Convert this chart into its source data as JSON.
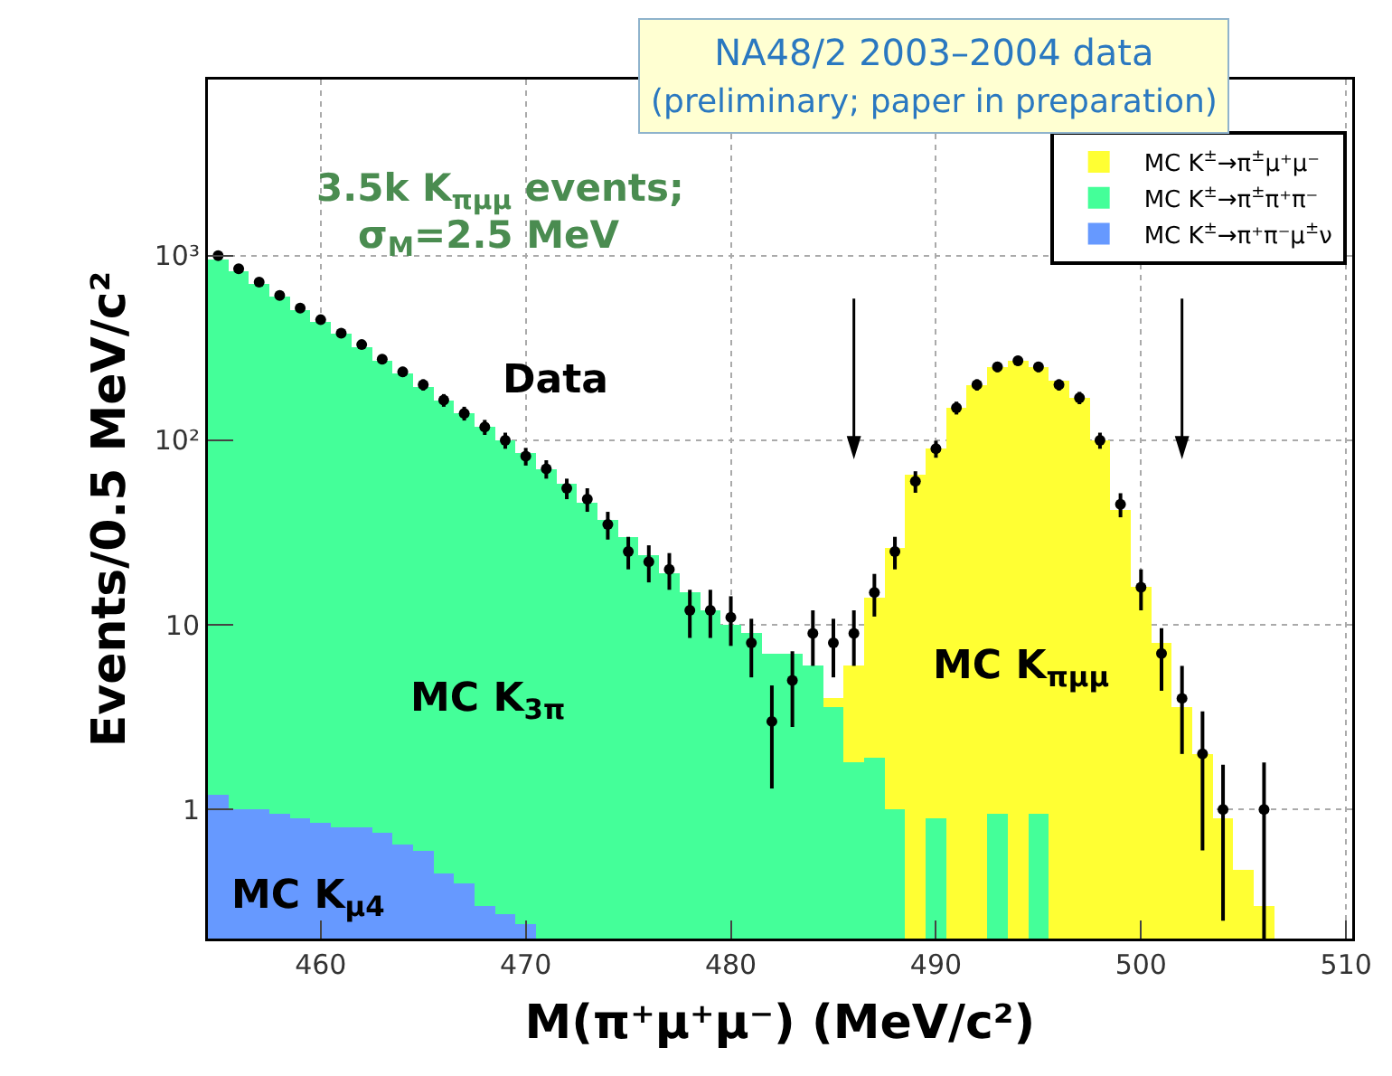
{
  "chart_data": {
    "type": "histogram",
    "title": "NA48/2 2003–2004 data",
    "subtitle": "(preliminary; paper in preparation)",
    "xlabel": "M(π⁺μ⁺μ⁻) (MeV/c²)",
    "ylabel": "Events/0.5 MeV/c²",
    "bins": [
      454.5,
      455.5,
      456.5,
      457.5,
      458.5,
      459.5,
      460.5,
      461.5,
      462.5,
      463.5,
      464.5,
      465.5,
      466.5,
      467.5,
      468.5,
      469.5,
      470.5,
      471.5,
      472.5,
      473.5,
      474.5,
      475.5,
      476.5,
      477.5,
      478.5,
      479.5,
      480.5,
      481.5,
      482.5,
      483.5,
      484.5,
      485.5,
      486.5,
      487.5,
      488.5,
      489.5,
      490.5,
      491.5,
      492.5,
      493.5,
      494.5,
      495.5,
      496.5,
      497.5,
      498.5,
      499.5,
      500.5,
      501.5,
      502.5,
      503.5,
      504.5,
      505.5,
      506.5,
      507.5,
      508.5,
      509.5,
      510.5
    ],
    "series": [
      {
        "name": "MC K$^{±}$→π$^{±}$μ⁺μ⁻",
        "color": "#ffff33",
        "values": [
          null,
          null,
          null,
          null,
          null,
          null,
          null,
          null,
          null,
          null,
          null,
          null,
          null,
          null,
          null,
          null,
          null,
          null,
          null,
          null,
          null,
          null,
          null,
          null,
          null,
          null,
          null,
          null,
          null,
          null,
          4,
          6,
          14,
          26,
          65,
          90,
          150,
          200,
          250,
          270,
          250,
          210,
          170,
          100,
          42,
          16,
          8,
          3.6,
          2,
          0.9,
          0.47,
          0.3,
          null,
          null,
          null,
          null
        ]
      },
      {
        "name": "MC K$^{±}$→π$^{±}$π⁺π⁻",
        "color": "#44ff99",
        "values": [
          950,
          820,
          700,
          600,
          510,
          440,
          380,
          320,
          270,
          230,
          195,
          165,
          140,
          118,
          100,
          85,
          70,
          58,
          46,
          37,
          30,
          24,
          19,
          15,
          12,
          10,
          9,
          7,
          7,
          6,
          3.6,
          1.8,
          1.9,
          1,
          null,
          0.9,
          null,
          null,
          0.95,
          null,
          0.95,
          null,
          null,
          null,
          null,
          null,
          null,
          null,
          null,
          null,
          null,
          null,
          null,
          null,
          null,
          null
        ]
      },
      {
        "name": "MC K$^{±}$→π⁺π⁻μ$^{±}$ν",
        "color": "#6699ff",
        "values": [
          1.2,
          1.0,
          1.0,
          0.95,
          0.9,
          0.85,
          0.8,
          0.8,
          0.75,
          0.65,
          0.6,
          0.45,
          0.4,
          0.3,
          0.27,
          0.24,
          null,
          null,
          null,
          null,
          null,
          null,
          null,
          null,
          null,
          null,
          null,
          null,
          null,
          null,
          null,
          null,
          null,
          null,
          null,
          null,
          null,
          null,
          null,
          null,
          null,
          null,
          null,
          null,
          null,
          null,
          null,
          null,
          null,
          null,
          null,
          null,
          null,
          null,
          null,
          null
        ]
      },
      {
        "name": "Data",
        "type": "scatter",
        "color": "#000000",
        "marker": "circle",
        "x": [
          455,
          456,
          457,
          458,
          459,
          460,
          461,
          462,
          463,
          464,
          465,
          466,
          467,
          468,
          469,
          470,
          471,
          472,
          473,
          474,
          475,
          476,
          477,
          478,
          479,
          480,
          481,
          482,
          483,
          484,
          485,
          486,
          487,
          488,
          489,
          490,
          491,
          492,
          493,
          494,
          495,
          496,
          497,
          498,
          499,
          500,
          501,
          502,
          503,
          504,
          505,
          506
        ],
        "values": [
          1000,
          850,
          720,
          610,
          520,
          450,
          380,
          330,
          275,
          235,
          200,
          165,
          140,
          118,
          100,
          82,
          70,
          55,
          48,
          35,
          25,
          22,
          20,
          12,
          12,
          11,
          8,
          3,
          5,
          9,
          8,
          9,
          15,
          25,
          60,
          90,
          150,
          200,
          250,
          270,
          250,
          200,
          170,
          100,
          45,
          16,
          7,
          4,
          2,
          1,
          null,
          1
        ],
        "errors": [
          32,
          29,
          27,
          25,
          23,
          21,
          19,
          18,
          17,
          15,
          14,
          13,
          12,
          11,
          10,
          9,
          8,
          7,
          7,
          6,
          5,
          5,
          4.5,
          3.5,
          3.5,
          3.3,
          2.8,
          1.7,
          2.2,
          3,
          2.8,
          3,
          3.9,
          5,
          8,
          9.5,
          12,
          14,
          16,
          16,
          16,
          14,
          13,
          10,
          6.7,
          4,
          2.6,
          2,
          1.4,
          0.75,
          null,
          0.8
        ]
      }
    ],
    "annotations": [
      "3.5k K$_{πμμ}$ events;",
      "σ$_{M}$=2.5 MeV",
      "MC K$_{3π}$",
      "MC K$_{πμμ}$",
      "MC K$_{μ4}$"
    ],
    "ref_lines": [
      {
        "axis": "x",
        "value": 486
      },
      {
        "axis": "x",
        "value": 502
      }
    ],
    "xlim": [
      454.5,
      510.3
    ],
    "xticks": [
      460,
      470,
      480,
      490,
      500,
      510
    ],
    "ylim": [
      0.2,
      9000
    ],
    "yticks": [
      1,
      10,
      {
        "value": 100,
        "label": "10²"
      },
      {
        "value": 1000,
        "label": "10³"
      }
    ],
    "log": "y",
    "grid": true,
    "legend": "top right"
  }
}
